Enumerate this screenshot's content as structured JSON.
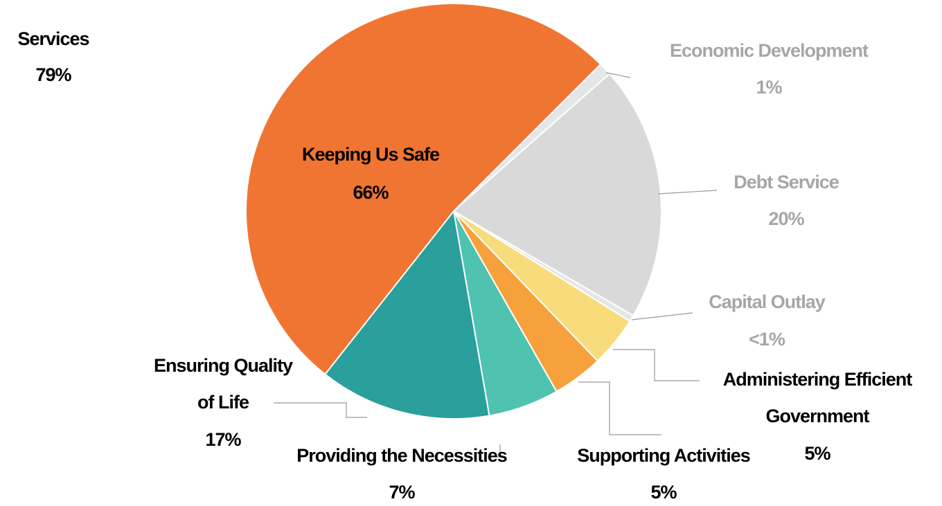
{
  "chart_data": {
    "type": "pie",
    "services": {
      "name": "Services",
      "value": 79,
      "value_label": "79%",
      "slices": [
        {
          "name": "Administering Efficient\nGovernment",
          "value": 5,
          "value_label": "5%",
          "color": "#f8dc7c"
        },
        {
          "name": "Supporting Activities",
          "value": 5,
          "value_label": "5%",
          "color": "#f7a13d"
        },
        {
          "name": "Providing the Necessities",
          "value": 7,
          "value_label": "7%",
          "color": "#4fc2b0"
        },
        {
          "name": "Ensuring Quality\nof Life",
          "value": 17,
          "value_label": "17%",
          "color": "#2a9f9c"
        },
        {
          "name": "Keeping Us Safe",
          "value": 66,
          "value_label": "66%",
          "color": "#f07533"
        }
      ]
    },
    "other": [
      {
        "name": "Economic Development",
        "value": 1,
        "value_label": "1%",
        "color": "#e6e6e6"
      },
      {
        "name": "Debt Service",
        "value": 20,
        "value_label": "20%",
        "color": "#d9d9d9"
      },
      {
        "name": "Capital Outlay",
        "value": 0.5,
        "value_label": "<1%",
        "color": "#e6e6e6"
      }
    ]
  }
}
